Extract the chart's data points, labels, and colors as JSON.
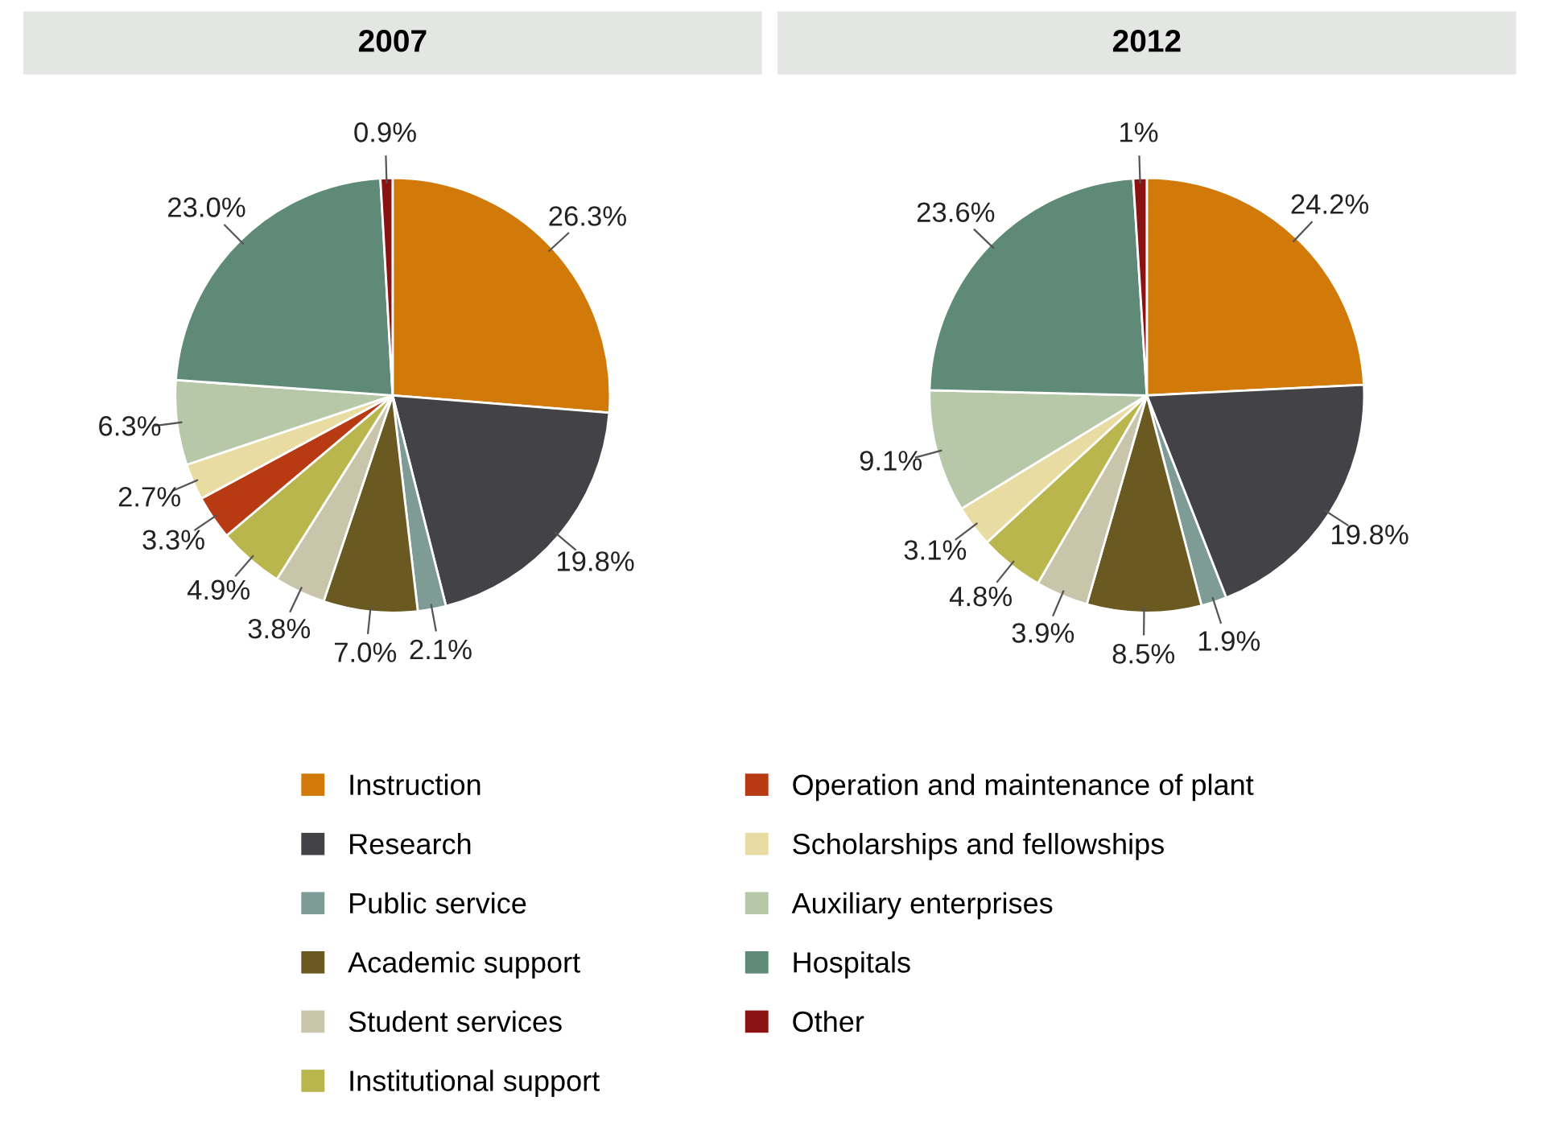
{
  "chart_data": {
    "type": "pie",
    "legend": "bottom",
    "categories": [
      "Instruction",
      "Research",
      "Public service",
      "Academic support",
      "Student services",
      "Institutional support",
      "Operation and maintenance of plant",
      "Scholarships and fellowships",
      "Auxiliary enterprises",
      "Hospitals",
      "Other"
    ],
    "colors": [
      "#d17a0a",
      "#434347",
      "#7f9b96",
      "#6b5922",
      "#c9c5aa",
      "#b9b64e",
      "#b83a12",
      "#e9dca2",
      "#b7c8a9",
      "#5f8a78",
      "#8b1212"
    ],
    "series": [
      {
        "name": "2007",
        "values": [
          26.3,
          19.8,
          2.1,
          7.0,
          3.8,
          4.9,
          3.3,
          2.7,
          6.3,
          23.0,
          0.9
        ],
        "value_labels": [
          "26.3%",
          "19.8%",
          "2.1%",
          "7.0%",
          "3.8%",
          "4.9%",
          "3.3%",
          "2.7%",
          "6.3%",
          "23.0%",
          "0.9%"
        ]
      },
      {
        "name": "2012",
        "values": [
          24.2,
          19.8,
          1.9,
          8.5,
          3.9,
          4.8,
          null,
          3.1,
          9.1,
          23.6,
          1
        ],
        "value_labels": [
          "24.2%",
          "19.8%",
          "1.9%",
          "8.5%",
          "3.9%",
          "4.8%",
          null,
          "3.1%",
          "9.1%",
          "23.6%",
          "1%"
        ]
      }
    ]
  }
}
